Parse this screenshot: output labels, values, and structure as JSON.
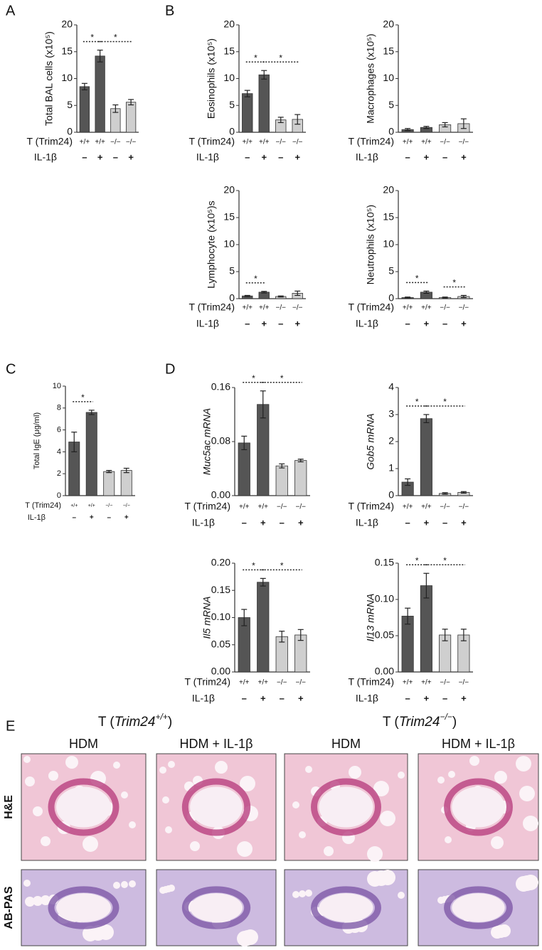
{
  "panels": [
    "A",
    "B",
    "C",
    "D",
    "E"
  ],
  "chart_data": [
    {
      "type": "bar",
      "ylabel": "Total BAL cells (x10⁵)",
      "row_labels": [
        "T (Trim24)",
        "IL-1β"
      ],
      "categories": [
        "+/+",
        "+/+",
        "−/−",
        "−/−"
      ],
      "treatment": [
        "–",
        "+",
        "–",
        "+"
      ],
      "values": [
        8.5,
        14.2,
        4.4,
        5.6
      ],
      "errors": [
        0.6,
        1.1,
        0.7,
        0.5
      ],
      "colors": [
        "#555555",
        "#555555",
        "#cfcfcf",
        "#cfcfcf"
      ],
      "ylim": [
        0,
        20
      ],
      "yticks": [
        0,
        5,
        10,
        15,
        20
      ],
      "significance": [
        {
          "from": 0,
          "to": 1,
          "label": "*"
        },
        {
          "from": 1,
          "to": 3,
          "label": "*"
        }
      ]
    },
    {
      "type": "bar",
      "ylabel": "Eosinophils (x10⁵)",
      "row_labels": [
        "T (Trim24)",
        "IL-1β"
      ],
      "categories": [
        "+/+",
        "+/+",
        "−/−",
        "−/−"
      ],
      "treatment": [
        "–",
        "+",
        "–",
        "+"
      ],
      "values": [
        7.2,
        10.7,
        2.3,
        2.4
      ],
      "errors": [
        0.6,
        0.8,
        0.5,
        0.9
      ],
      "colors": [
        "#555555",
        "#555555",
        "#cfcfcf",
        "#cfcfcf"
      ],
      "ylim": [
        0,
        20
      ],
      "yticks": [
        0,
        5,
        10,
        15,
        20
      ],
      "significance": [
        {
          "from": 0,
          "to": 1,
          "label": "*"
        },
        {
          "from": 1,
          "to": 3,
          "label": "*"
        }
      ]
    },
    {
      "type": "bar",
      "ylabel": "Macrophages (x10⁵)",
      "row_labels": [
        "T (Trim24)",
        "IL-1β"
      ],
      "categories": [
        "+/+",
        "+/+",
        "−/−",
        "−/−"
      ],
      "treatment": [
        "–",
        "+",
        "–",
        "+"
      ],
      "values": [
        0.5,
        0.9,
        1.4,
        1.6
      ],
      "errors": [
        0.2,
        0.2,
        0.4,
        0.9
      ],
      "colors": [
        "#555555",
        "#555555",
        "#cfcfcf",
        "#cfcfcf"
      ],
      "ylim": [
        0,
        20
      ],
      "yticks": [
        0,
        5,
        10,
        15,
        20
      ],
      "significance": []
    },
    {
      "type": "bar",
      "ylabel": "Lymphocyte (x10⁵)s",
      "row_labels": [
        "T (Trim24)",
        "IL-1β"
      ],
      "categories": [
        "+/+",
        "+/+",
        "−/−",
        "−/−"
      ],
      "treatment": [
        "–",
        "+",
        "–",
        "+"
      ],
      "values": [
        0.5,
        1.2,
        0.4,
        1.0
      ],
      "errors": [
        0.1,
        0.15,
        0.1,
        0.4
      ],
      "colors": [
        "#555555",
        "#555555",
        "#cfcfcf",
        "#cfcfcf"
      ],
      "ylim": [
        0,
        20
      ],
      "yticks": [
        0,
        5,
        10,
        15,
        20
      ],
      "significance": [
        {
          "from": 0,
          "to": 1,
          "label": "*"
        }
      ]
    },
    {
      "type": "bar",
      "ylabel": "Neutrophils (x10⁵)",
      "row_labels": [
        "T (Trim24)",
        "IL-1β"
      ],
      "categories": [
        "+/+",
        "+/+",
        "−/−",
        "−/−"
      ],
      "treatment": [
        "–",
        "+",
        "–",
        "+"
      ],
      "values": [
        0.2,
        1.2,
        0.2,
        0.4
      ],
      "errors": [
        0.1,
        0.2,
        0.1,
        0.2
      ],
      "colors": [
        "#555555",
        "#555555",
        "#cfcfcf",
        "#cfcfcf"
      ],
      "ylim": [
        0,
        20
      ],
      "yticks": [
        0,
        5,
        10,
        15,
        20
      ],
      "significance": [
        {
          "from": 0,
          "to": 1,
          "label": "*"
        },
        {
          "from": 2,
          "to": 3,
          "label": "*"
        }
      ]
    },
    {
      "type": "bar",
      "ylabel": "Total IgE (μg/ml)",
      "row_labels": [
        "T (Trim24)",
        "IL-1β"
      ],
      "categories": [
        "+/+",
        "+/+",
        "−/−",
        "−/−"
      ],
      "treatment": [
        "–",
        "+",
        "–",
        "+"
      ],
      "values": [
        4.9,
        7.6,
        2.2,
        2.3
      ],
      "errors": [
        0.9,
        0.2,
        0.1,
        0.2
      ],
      "colors": [
        "#555555",
        "#555555",
        "#cfcfcf",
        "#cfcfcf"
      ],
      "ylim": [
        0,
        10
      ],
      "yticks": [
        0,
        2,
        4,
        6,
        8,
        10
      ],
      "significance": [
        {
          "from": 0,
          "to": 1,
          "label": "*"
        }
      ]
    },
    {
      "type": "bar",
      "ylabel": "Muc5ac mRNA",
      "ylabel_italic": true,
      "row_labels": [
        "T (Trim24)",
        "IL-1β"
      ],
      "categories": [
        "+/+",
        "+/+",
        "−/−",
        "−/−"
      ],
      "treatment": [
        "–",
        "+",
        "–",
        "+"
      ],
      "values": [
        0.078,
        0.135,
        0.044,
        0.052
      ],
      "errors": [
        0.01,
        0.02,
        0.003,
        0.002
      ],
      "colors": [
        "#555555",
        "#555555",
        "#cfcfcf",
        "#cfcfcf"
      ],
      "ylim": [
        0,
        0.16
      ],
      "yticks": [
        {
          "value": 0,
          "label": "0.00"
        },
        {
          "value": 0.08,
          "label": "0.08"
        },
        {
          "value": 0.16,
          "label": "0.16"
        }
      ],
      "significance": [
        {
          "from": 0,
          "to": 1,
          "label": "*"
        },
        {
          "from": 1,
          "to": 3,
          "label": "*"
        }
      ]
    },
    {
      "type": "bar",
      "ylabel": "Gob5 mRNA",
      "ylabel_italic": true,
      "row_labels": [
        "T (Trim24)",
        "IL-1β"
      ],
      "categories": [
        "+/+",
        "+/+",
        "−/−",
        "−/−"
      ],
      "treatment": [
        "–",
        "+",
        "–",
        "+"
      ],
      "values": [
        0.5,
        2.85,
        0.08,
        0.12
      ],
      "errors": [
        0.12,
        0.15,
        0.03,
        0.03
      ],
      "colors": [
        "#555555",
        "#555555",
        "#cfcfcf",
        "#cfcfcf"
      ],
      "ylim": [
        0,
        4
      ],
      "yticks": [
        0,
        1,
        2,
        3,
        4
      ],
      "significance": [
        {
          "from": 0,
          "to": 1,
          "label": "*"
        },
        {
          "from": 1,
          "to": 3,
          "label": "*"
        }
      ]
    },
    {
      "type": "bar",
      "ylabel": "Il5 mRNA",
      "ylabel_italic": true,
      "row_labels": [
        "T (Trim24)",
        "IL-1β"
      ],
      "categories": [
        "+/+",
        "+/+",
        "−/−",
        "−/−"
      ],
      "treatment": [
        "–",
        "+",
        "–",
        "+"
      ],
      "values": [
        0.1,
        0.165,
        0.065,
        0.068
      ],
      "errors": [
        0.015,
        0.007,
        0.01,
        0.01
      ],
      "colors": [
        "#555555",
        "#555555",
        "#cfcfcf",
        "#cfcfcf"
      ],
      "ylim": [
        0,
        0.2
      ],
      "yticks": [
        {
          "value": 0,
          "label": "0.00"
        },
        {
          "value": 0.05,
          "label": "0.05"
        },
        {
          "value": 0.1,
          "label": "0.10"
        },
        {
          "value": 0.15,
          "label": "0.15"
        },
        {
          "value": 0.2,
          "label": "0.20"
        }
      ],
      "significance": [
        {
          "from": 0,
          "to": 1,
          "label": "*"
        },
        {
          "from": 1,
          "to": 3,
          "label": "*"
        }
      ]
    },
    {
      "type": "bar",
      "ylabel": "Il13 mRNA",
      "ylabel_italic": true,
      "row_labels": [
        "T (Trim24)",
        "IL-1β"
      ],
      "categories": [
        "+/+",
        "+/+",
        "−/−",
        "−/−"
      ],
      "treatment": [
        "–",
        "+",
        "–",
        "+"
      ],
      "values": [
        0.077,
        0.119,
        0.051,
        0.051
      ],
      "errors": [
        0.011,
        0.017,
        0.008,
        0.008
      ],
      "colors": [
        "#555555",
        "#555555",
        "#cfcfcf",
        "#cfcfcf"
      ],
      "ylim": [
        0,
        0.15
      ],
      "yticks": [
        {
          "value": 0,
          "label": "0.00"
        },
        {
          "value": 0.05,
          "label": "0.05"
        },
        {
          "value": 0.1,
          "label": "0.10"
        },
        {
          "value": 0.15,
          "label": "0.15"
        }
      ],
      "significance": [
        {
          "from": 0,
          "to": 1,
          "label": "*"
        },
        {
          "from": 1,
          "to": 3,
          "label": "*"
        }
      ]
    }
  ],
  "histology": {
    "groups": [
      {
        "prefix": "T (",
        "gene": "Trim24",
        "genotype": "+/+",
        "suffix": ")"
      },
      {
        "prefix": "T (",
        "gene": "Trim24",
        "genotype": "−/−",
        "suffix": ")"
      }
    ],
    "conditions": [
      "HDM",
      "HDM + IL-1β",
      "HDM",
      "HDM + IL-1β"
    ],
    "stains": [
      "H&E",
      "AB-PAS"
    ]
  }
}
